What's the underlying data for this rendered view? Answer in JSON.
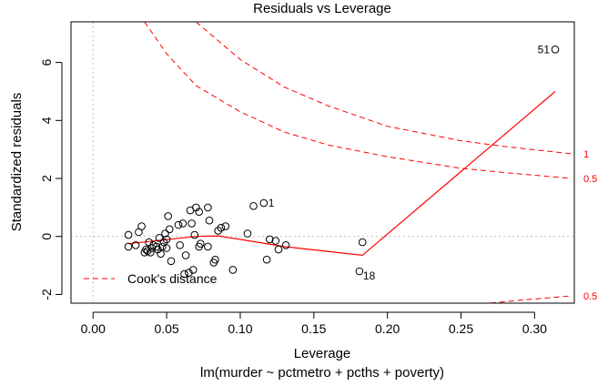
{
  "chart_data": {
    "type": "scatter",
    "title": "Residuals vs Leverage",
    "xlabel": "Leverage",
    "subtitle": "lm(murder ~ pctmetro + pcths + poverty)",
    "ylabel": "Standardized residuals",
    "xlim": [
      -0.015,
      0.327
    ],
    "ylim": [
      -2.3,
      7.4
    ],
    "xticks": [
      0.0,
      0.05,
      0.1,
      0.15,
      0.2,
      0.25,
      0.3
    ],
    "xtick_labels": [
      "0.00",
      "0.05",
      "0.10",
      "0.15",
      "0.20",
      "0.25",
      "0.30"
    ],
    "yticks": [
      -2,
      0,
      2,
      4,
      6
    ],
    "ytick_labels": [
      "-2",
      "0",
      "2",
      "4",
      "6"
    ],
    "points": [
      [
        0.024,
        0.05
      ],
      [
        0.024,
        -0.35
      ],
      [
        0.029,
        -0.3
      ],
      [
        0.031,
        0.15
      ],
      [
        0.033,
        0.35
      ],
      [
        0.035,
        -0.55
      ],
      [
        0.036,
        -0.45
      ],
      [
        0.037,
        -0.5
      ],
      [
        0.038,
        -0.2
      ],
      [
        0.039,
        -0.55
      ],
      [
        0.04,
        -0.4
      ],
      [
        0.041,
        -0.3
      ],
      [
        0.043,
        -0.35
      ],
      [
        0.044,
        -0.45
      ],
      [
        0.045,
        -0.05
      ],
      [
        0.046,
        -0.6
      ],
      [
        0.047,
        -0.35
      ],
      [
        0.048,
        -0.2
      ],
      [
        0.049,
        0.1
      ],
      [
        0.05,
        -0.1
      ],
      [
        0.05,
        -0.4
      ],
      [
        0.051,
        0.7
      ],
      [
        0.052,
        0.25
      ],
      [
        0.053,
        -0.85
      ],
      [
        0.058,
        0.4
      ],
      [
        0.059,
        -0.3
      ],
      [
        0.061,
        0.45
      ],
      [
        0.062,
        -1.3
      ],
      [
        0.063,
        -0.65
      ],
      [
        0.065,
        -1.25
      ],
      [
        0.066,
        0.9
      ],
      [
        0.067,
        0.45
      ],
      [
        0.068,
        -1.15
      ],
      [
        0.069,
        0.05
      ],
      [
        0.07,
        1.0
      ],
      [
        0.072,
        0.85
      ],
      [
        0.072,
        -0.35
      ],
      [
        0.073,
        -0.25
      ],
      [
        0.078,
        1.0
      ],
      [
        0.078,
        -0.35
      ],
      [
        0.079,
        0.55
      ],
      [
        0.082,
        -0.9
      ],
      [
        0.083,
        -0.8
      ],
      [
        0.085,
        0.2
      ],
      [
        0.087,
        0.3
      ],
      [
        0.09,
        0.35
      ],
      [
        0.095,
        -1.15
      ],
      [
        0.105,
        0.1
      ],
      [
        0.109,
        1.05
      ],
      [
        0.116,
        1.15
      ],
      [
        0.118,
        -0.8
      ],
      [
        0.12,
        -0.1
      ],
      [
        0.124,
        -0.15
      ],
      [
        0.126,
        -0.45
      ],
      [
        0.131,
        -0.3
      ],
      [
        0.183,
        -0.2
      ],
      [
        0.181,
        -1.2
      ],
      [
        0.314,
        6.45
      ]
    ],
    "point_labels": [
      {
        "text": "1",
        "x": 0.116,
        "y": 1.15
      },
      {
        "text": "18",
        "x": 0.181,
        "y": -1.2
      },
      {
        "text": "51",
        "x": 0.314,
        "y": 6.45
      }
    ],
    "series": [
      {
        "values": [
          [
            0.024,
            -0.25
          ],
          [
            0.07,
            0.0
          ],
          [
            0.085,
            0.02
          ],
          [
            0.13,
            -0.35
          ],
          [
            0.183,
            -0.65
          ],
          [
            0.314,
            5.0
          ]
        ]
      }
    ],
    "cooks_distance": {
      "legend": "Cook's distance",
      "levels": [
        {
          "label": "0.5",
          "curve_pos": [
            [
              0.035,
              7.4
            ],
            [
              0.05,
              6.3
            ],
            [
              0.07,
              5.2
            ],
            [
              0.1,
              4.3
            ],
            [
              0.13,
              3.6
            ],
            [
              0.16,
              3.15
            ],
            [
              0.2,
              2.75
            ],
            [
              0.25,
              2.35
            ],
            [
              0.28,
              2.2
            ],
            [
              0.325,
              2.0
            ]
          ],
          "curve_neg": [
            [
              0.27,
              -2.3
            ],
            [
              0.29,
              -2.2
            ],
            [
              0.325,
              -2.05
            ]
          ]
        },
        {
          "label": "1",
          "curve_pos": [
            [
              0.07,
              7.4
            ],
            [
              0.1,
              6.1
            ],
            [
              0.13,
              5.15
            ],
            [
              0.16,
              4.5
            ],
            [
              0.2,
              3.8
            ],
            [
              0.25,
              3.3
            ],
            [
              0.28,
              3.1
            ],
            [
              0.325,
              2.85
            ]
          ]
        }
      ],
      "right_labels": [
        {
          "text": "1",
          "y": 2.85
        },
        {
          "text": "0.5",
          "y": 2.0
        },
        {
          "text": "0.5",
          "y": -2.05
        }
      ]
    },
    "colors": {
      "cook": "#ff0000",
      "smooth": "#ff0000",
      "points": "#000000",
      "reference": "#bebebe"
    }
  }
}
